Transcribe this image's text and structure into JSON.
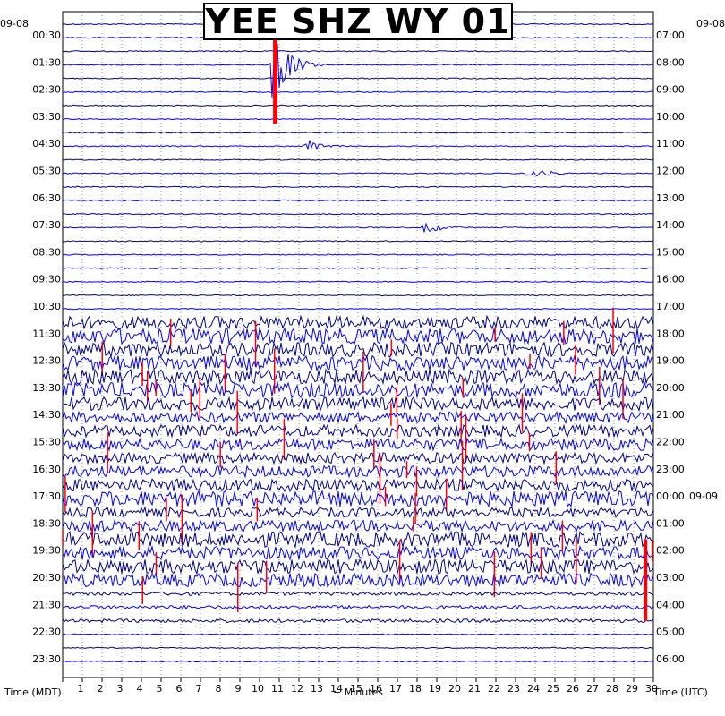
{
  "chart_data": {
    "type": "line",
    "title": "YEE SHZ WY 01",
    "xlabel": "+ Minutes",
    "left_axis_label": "Time (MDT)",
    "right_axis_label": "Time (UTC)",
    "x_ticks": [
      "1",
      "2",
      "3",
      "4",
      "5",
      "6",
      "7",
      "8",
      "9",
      "10",
      "11",
      "12",
      "13",
      "14",
      "15",
      "16",
      "17",
      "18",
      "19",
      "20",
      "21",
      "22",
      "23",
      "24",
      "25",
      "26",
      "27",
      "28",
      "29",
      "30"
    ],
    "left_date": "09-08",
    "right_top_date": "09-08",
    "right_mid_date": "09-09",
    "left_ticks": [
      "00:30",
      "01:30",
      "02:30",
      "03:30",
      "04:30",
      "05:30",
      "06:30",
      "07:30",
      "08:30",
      "09:30",
      "10:30",
      "11:30",
      "12:30",
      "13:30",
      "14:30",
      "15:30",
      "16:30",
      "17:30",
      "18:30",
      "19:30",
      "20:30",
      "21:30",
      "22:30",
      "23:30"
    ],
    "right_ticks": [
      "07:00",
      "08:00",
      "09:00",
      "10:00",
      "11:00",
      "12:00",
      "13:00",
      "14:00",
      "15:00",
      "16:00",
      "17:00",
      "18:00",
      "19:00",
      "20:00",
      "21:00",
      "22:00",
      "23:00",
      "00:00",
      "01:00",
      "02:00",
      "03:00",
      "04:00",
      "05:00",
      "06:00"
    ],
    "trace_colors": [
      "#00008b",
      "#0000ff"
    ],
    "clip_color": "#ff0000",
    "trace_lines": 48,
    "noisy_hours": [
      "11:30",
      "21:30"
    ],
    "events": [
      {
        "line": 3,
        "minute": 10.8,
        "amplitude": "clipped"
      },
      {
        "line": 9,
        "minute": 12.5,
        "amplitude": "moderate"
      },
      {
        "line": 11,
        "minute": 23.8,
        "amplitude": "moderate"
      },
      {
        "line": 15,
        "minute": 18.5,
        "amplitude": "moderate"
      }
    ]
  }
}
